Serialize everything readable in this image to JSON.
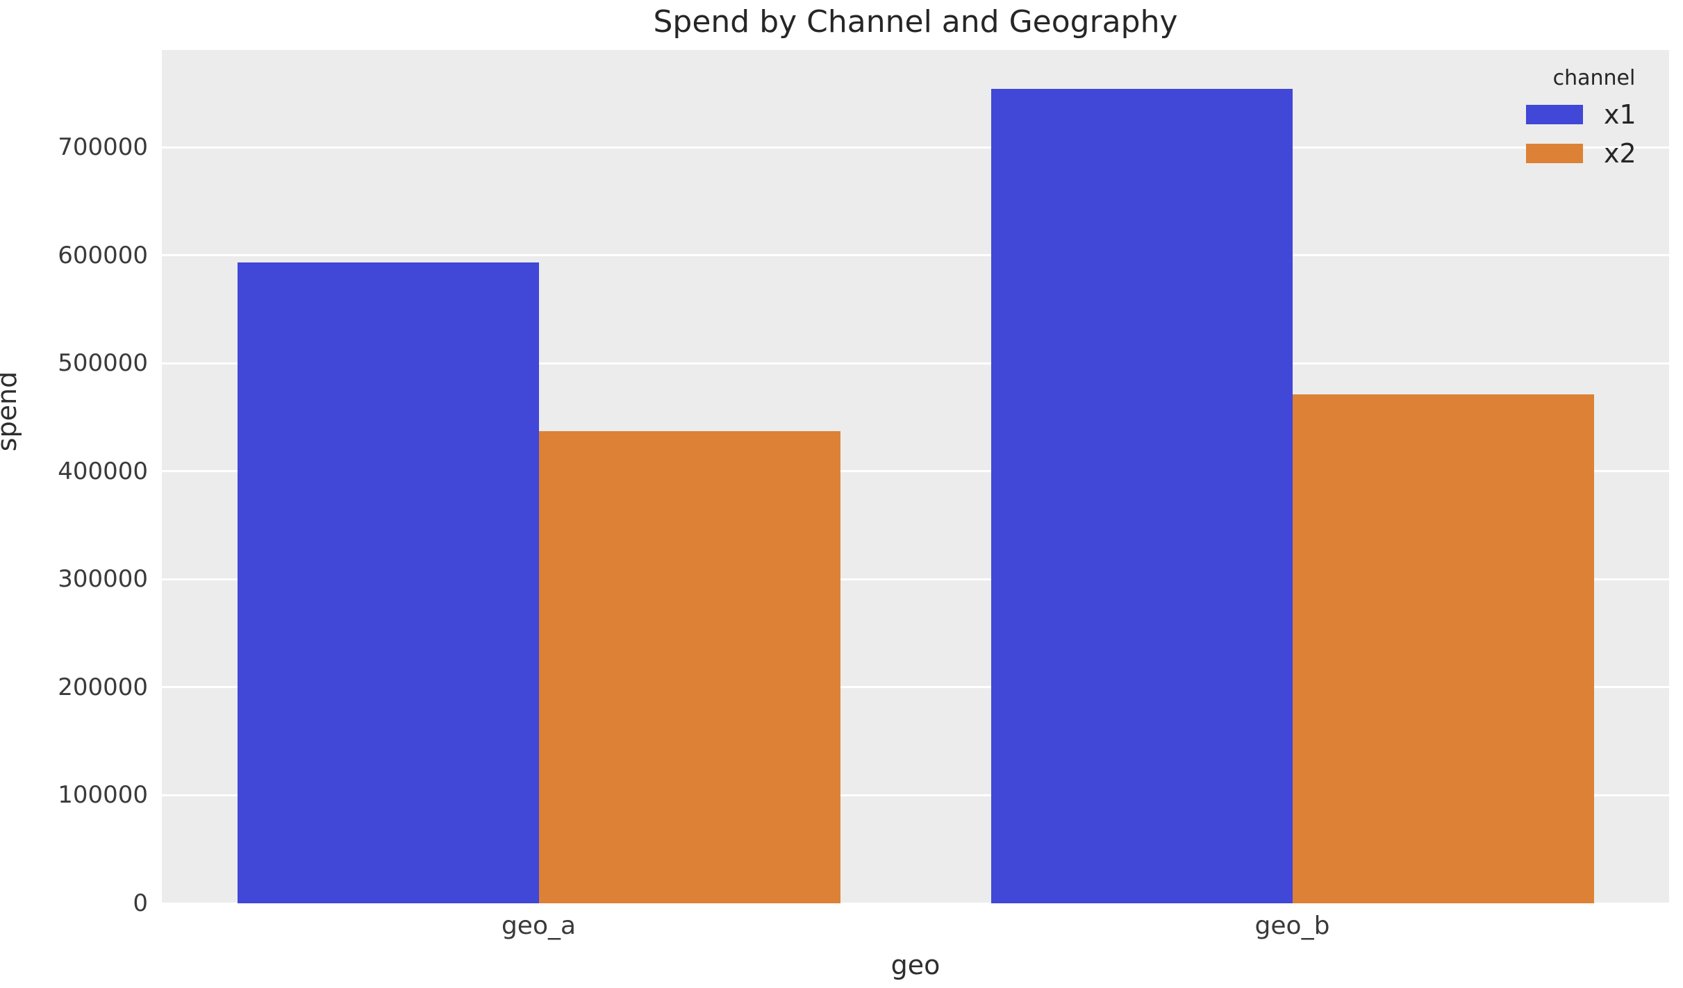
{
  "title": "Spend by Channel and Geography",
  "chart_data": {
    "type": "bar",
    "title": "Spend by Channel and Geography",
    "categories": [
      "geo_a",
      "geo_b"
    ],
    "series": [
      {
        "name": "x1",
        "color": "#4147d6",
        "values": [
          593000,
          754000
        ]
      },
      {
        "name": "x2",
        "color": "#dd8136",
        "values": [
          437000,
          471000
        ]
      }
    ],
    "xlabel": "geo",
    "ylabel": "spend",
    "ylim": [
      0,
      790000
    ],
    "yticks": [
      0,
      100000,
      200000,
      300000,
      400000,
      500000,
      600000,
      700000
    ],
    "grid": "horizontal white gridlines",
    "plot_background": "#ececec",
    "grid_color": "#ffffff",
    "legend": {
      "title": "channel",
      "position": "upper right",
      "entries": [
        "x1",
        "x2"
      ]
    }
  }
}
